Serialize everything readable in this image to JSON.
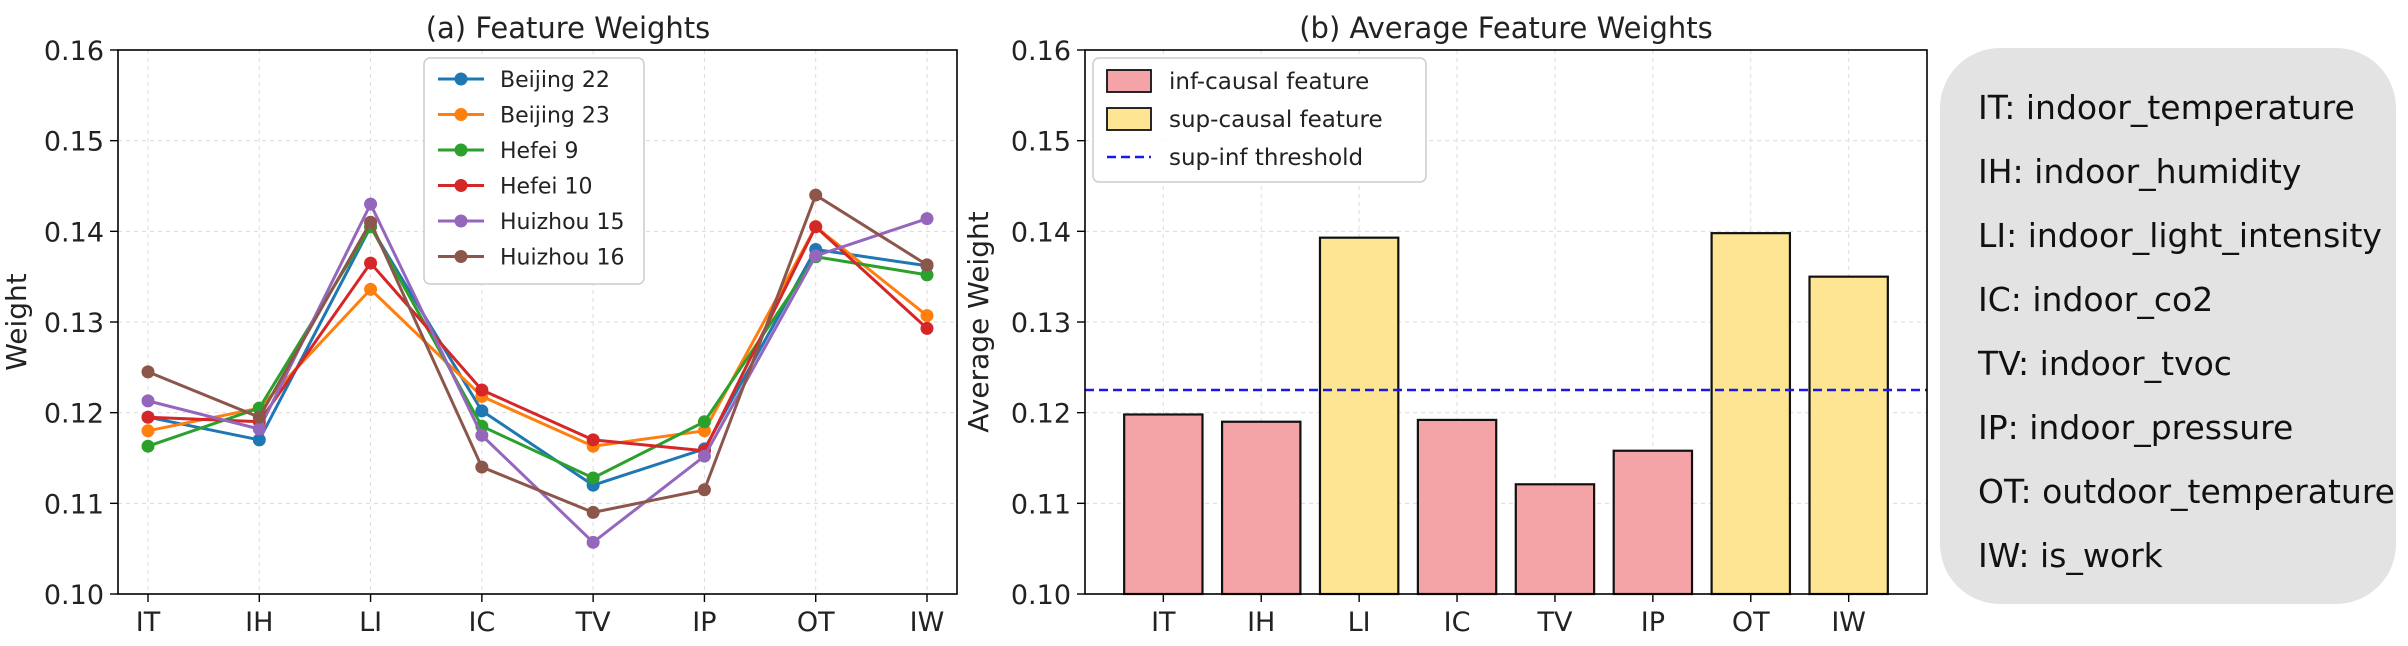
{
  "chart_data": [
    {
      "type": "line",
      "title": "(a) Feature Weights",
      "xlabel": "",
      "ylabel": "Weight",
      "categories": [
        "IT",
        "IH",
        "LI",
        "IC",
        "TV",
        "IP",
        "OT",
        "IW"
      ],
      "ylim": [
        0.1,
        0.16
      ],
      "yticks": [
        "0.10",
        "0.11",
        "0.12",
        "0.13",
        "0.14",
        "0.15",
        "0.16"
      ],
      "grid": true,
      "legend_position": "top-center",
      "series": [
        {
          "name": "Beijing 22",
          "color": "#1f77b4",
          "values": [
            0.1195,
            0.117,
            0.1405,
            0.1202,
            0.112,
            0.116,
            0.138,
            0.1362
          ]
        },
        {
          "name": "Beijing 23",
          "color": "#ff7f0e",
          "values": [
            0.118,
            0.1205,
            0.1336,
            0.1218,
            0.1163,
            0.118,
            0.1405,
            0.1307
          ]
        },
        {
          "name": "Hefei 9",
          "color": "#2ca02c",
          "values": [
            0.1163,
            0.1205,
            0.1405,
            0.1185,
            0.1128,
            0.119,
            0.1372,
            0.1352
          ]
        },
        {
          "name": "Hefei 10",
          "color": "#d62728",
          "values": [
            0.1195,
            0.119,
            0.1365,
            0.1225,
            0.117,
            0.1158,
            0.1405,
            0.1293
          ]
        },
        {
          "name": "Huizhou 15",
          "color": "#9467bd",
          "values": [
            0.1213,
            0.1182,
            0.143,
            0.1175,
            0.1057,
            0.1152,
            0.1373,
            0.1414
          ]
        },
        {
          "name": "Huizhou 16",
          "color": "#8c564b",
          "values": [
            0.1245,
            0.1195,
            0.141,
            0.114,
            0.109,
            0.1115,
            0.144,
            0.1363
          ]
        }
      ]
    },
    {
      "type": "bar",
      "title": "(b) Average Feature Weights",
      "xlabel": "",
      "ylabel": "Average Weight",
      "categories": [
        "IT",
        "IH",
        "LI",
        "IC",
        "TV",
        "IP",
        "OT",
        "IW"
      ],
      "values": [
        0.1198,
        0.119,
        0.1393,
        0.1192,
        0.1121,
        0.1158,
        0.1398,
        0.135
      ],
      "bar_class": [
        "inf",
        "inf",
        "sup",
        "inf",
        "inf",
        "inf",
        "sup",
        "sup"
      ],
      "ylim": [
        0.1,
        0.16
      ],
      "yticks": [
        "0.10",
        "0.11",
        "0.12",
        "0.13",
        "0.14",
        "0.15",
        "0.16"
      ],
      "threshold": 0.1225,
      "grid": true,
      "legend_position": "top-left",
      "legend": {
        "inf": {
          "label": "inf-causal feature",
          "color": "#f4a3a6"
        },
        "sup": {
          "label": "sup-causal feature",
          "color": "#fde594"
        },
        "threshold": {
          "label": "sup-inf threshold",
          "color": "#1a1ae6"
        }
      }
    }
  ],
  "abbreviation_legend": [
    "IT: indoor_temperature",
    "IH: indoor_humidity",
    "LI: indoor_light_intensity",
    "IC: indoor_co2",
    "TV: indoor_tvoc",
    "IP: indoor_pressure",
    "OT: outdoor_temperature",
    "IW: is_work"
  ]
}
